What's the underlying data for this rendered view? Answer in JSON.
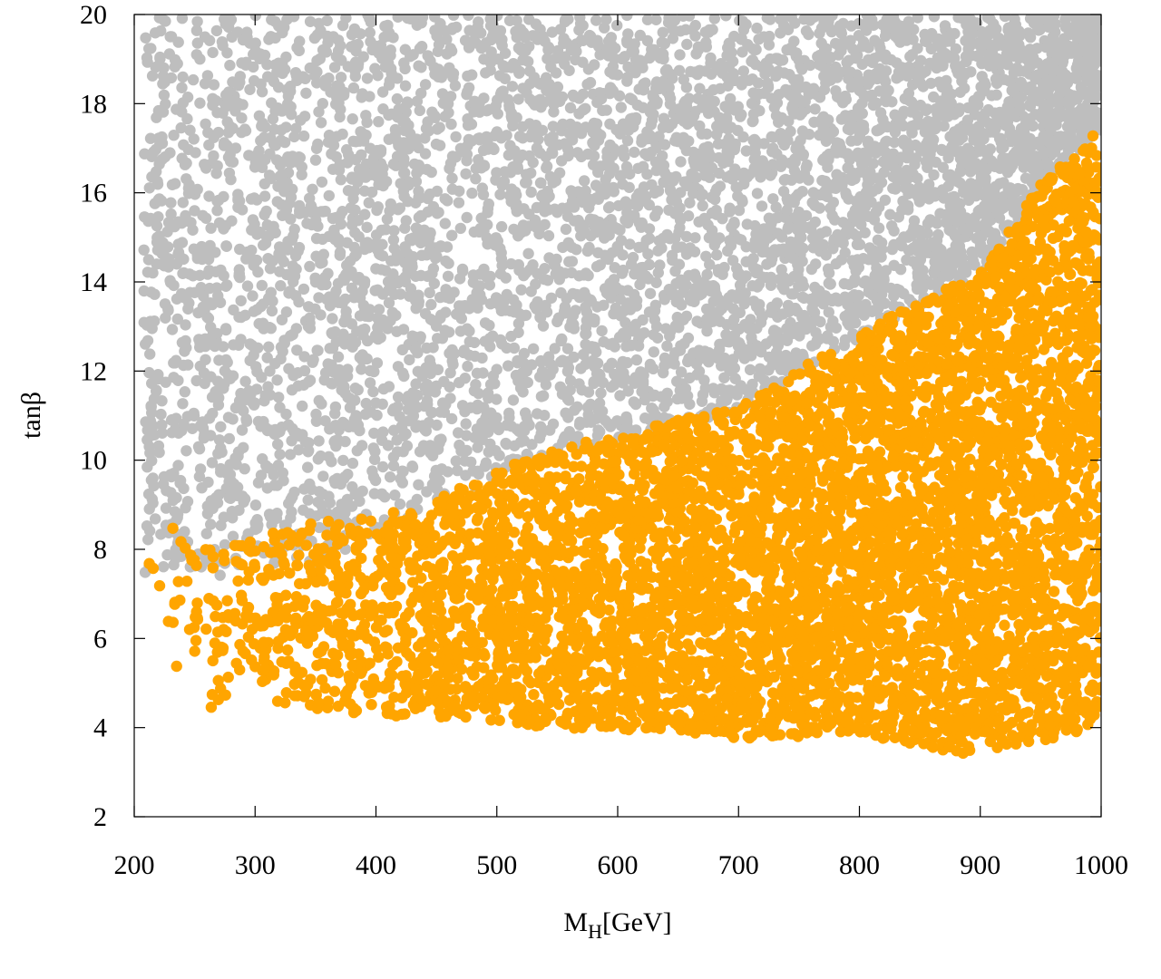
{
  "chart_data": {
    "type": "scatter",
    "title": "",
    "xlabel": "M",
    "xlabel_sub": "H",
    "xlabel_suffix": "[GeV]",
    "ylabel": "tanβ",
    "xlim": [
      200,
      1000
    ],
    "ylim": [
      2,
      20
    ],
    "x_ticks": [
      200,
      300,
      400,
      500,
      600,
      700,
      800,
      900,
      1000
    ],
    "y_ticks": [
      2,
      4,
      6,
      8,
      10,
      12,
      14,
      16,
      18,
      20
    ],
    "grid": false,
    "legend": "none",
    "series": [
      {
        "color": "#bebebe",
        "region": "gray points: above the boundary, filling up to tanβ = 20",
        "boundary": [
          [
            260,
            7.5
          ],
          [
            350,
            7.6
          ],
          [
            440,
            9.0
          ],
          [
            520,
            10.0
          ],
          [
            600,
            10.6
          ],
          [
            700,
            11.2
          ],
          [
            760,
            12.2
          ],
          [
            830,
            13.3
          ],
          [
            900,
            14.2
          ],
          [
            950,
            16.2
          ],
          [
            1000,
            17.5
          ]
        ],
        "top": 20
      },
      {
        "color": "#ffa500",
        "region": "orange points: below the boundary, down to the lower edge",
        "upper_edge": [
          [
            210,
            9.9
          ],
          [
            260,
            8.0
          ],
          [
            350,
            8.6
          ],
          [
            440,
            9.0
          ],
          [
            520,
            10.0
          ],
          [
            600,
            10.6
          ],
          [
            700,
            11.2
          ],
          [
            760,
            12.2
          ],
          [
            830,
            13.3
          ],
          [
            900,
            14.2
          ],
          [
            950,
            16.2
          ],
          [
            1000,
            17.5
          ]
        ],
        "lower_edge": [
          [
            210,
            6.5
          ],
          [
            250,
            4.0
          ],
          [
            300,
            4.7
          ],
          [
            350,
            4.3
          ],
          [
            450,
            4.2
          ],
          [
            550,
            4.0
          ],
          [
            650,
            3.9
          ],
          [
            700,
            3.75
          ],
          [
            800,
            3.85
          ],
          [
            880,
            3.4
          ],
          [
            950,
            3.7
          ],
          [
            1000,
            3.9
          ]
        ]
      }
    ]
  }
}
